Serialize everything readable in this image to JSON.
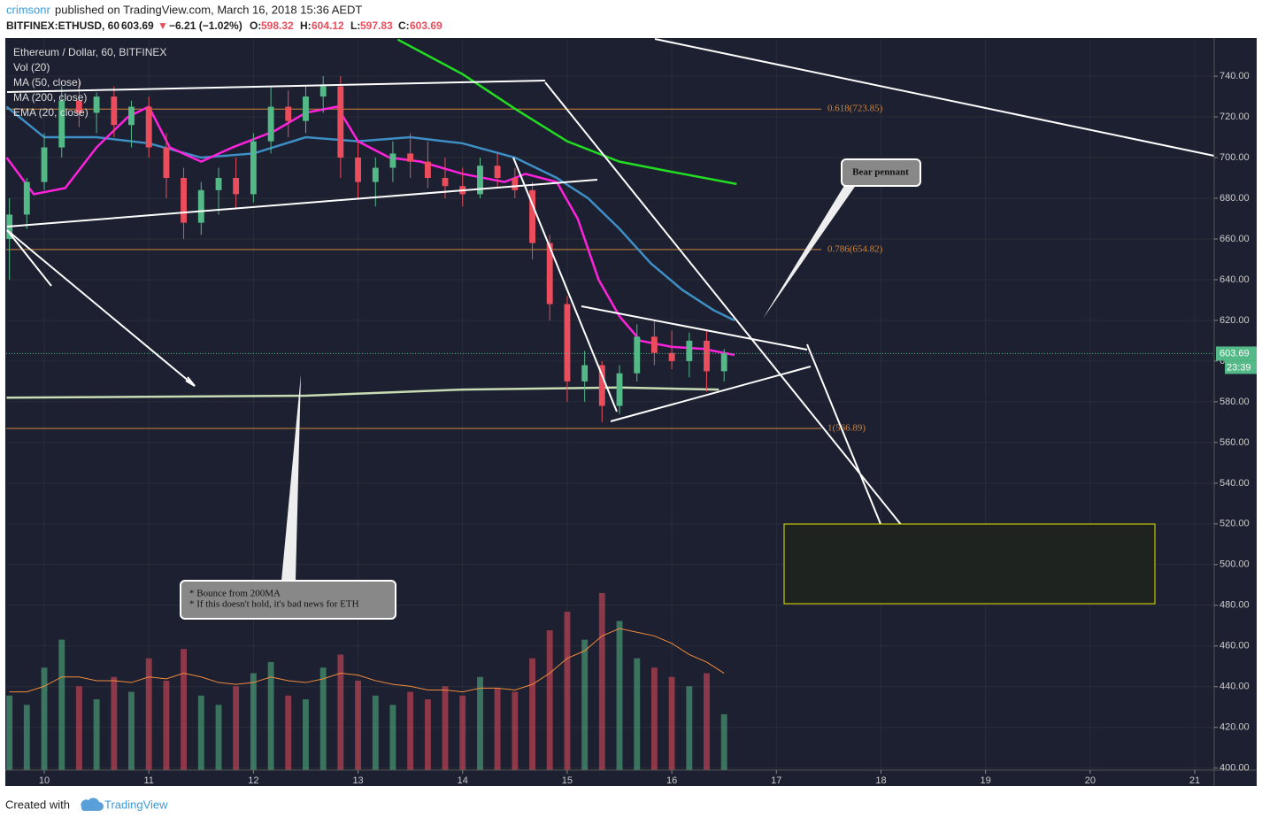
{
  "header": {
    "author": "crimsonr",
    "published": "published on TradingView.com, March 16, 2018 15:36 AEDT",
    "symbol": "BITFINEX:ETHUSD, 60",
    "arrow": "▼",
    "change": "−6.21 (−1.02%)",
    "o_label": "O:",
    "open": "598.32",
    "h_label": "H:",
    "high": "604.12",
    "l_label": "L:",
    "low": "597.83",
    "c_label": "C:"
  },
  "chart_data": {
    "type": "candlestick",
    "title": "Ethereum / Dollar, 60, BITFINEX",
    "x": [
      9.667,
      9.833,
      10.0,
      10.167,
      10.333,
      10.5,
      10.667,
      10.833,
      11.0,
      11.167,
      11.333,
      11.5,
      11.667,
      11.833,
      12.0,
      12.167,
      12.333,
      12.5,
      12.667,
      12.833,
      13.0,
      13.167,
      13.333,
      13.5,
      13.667,
      13.833,
      14.0,
      14.167,
      14.333,
      14.5,
      14.667,
      14.833,
      15.0,
      15.167,
      15.333,
      15.5,
      15.667,
      15.833,
      16.0,
      16.167,
      16.333,
      16.5
    ],
    "open": [
      660,
      672,
      688,
      705,
      728,
      722,
      730,
      716,
      725,
      705,
      690,
      668,
      684,
      690,
      682,
      708,
      725,
      718,
      730,
      735,
      700,
      688,
      695,
      702,
      698,
      690,
      686,
      682,
      696,
      690,
      684,
      658,
      628,
      590,
      598,
      578,
      594,
      612,
      604,
      600,
      610,
      595
    ],
    "high": [
      680,
      690,
      712,
      735,
      738,
      732,
      735,
      728,
      730,
      712,
      695,
      688,
      695,
      700,
      712,
      735,
      733,
      735,
      740,
      740,
      708,
      700,
      708,
      712,
      708,
      700,
      695,
      700,
      702,
      695,
      688,
      662,
      632,
      605,
      600,
      598,
      618,
      620,
      615,
      614,
      615,
      606
    ],
    "low": [
      640,
      665,
      684,
      700,
      715,
      712,
      710,
      705,
      700,
      680,
      660,
      662,
      672,
      675,
      678,
      702,
      710,
      712,
      722,
      690,
      680,
      676,
      688,
      690,
      685,
      680,
      676,
      680,
      685,
      680,
      650,
      620,
      580,
      580,
      570,
      574,
      590,
      598,
      596,
      592,
      585,
      590
    ],
    "close": [
      672,
      688,
      705,
      728,
      722,
      730,
      716,
      725,
      705,
      690,
      668,
      684,
      690,
      682,
      708,
      725,
      718,
      730,
      735,
      700,
      688,
      695,
      702,
      698,
      690,
      686,
      682,
      696,
      690,
      684,
      658,
      628,
      590,
      598,
      578,
      594,
      612,
      604,
      600,
      610,
      595,
      603.69
    ],
    "up_color": "#53b987",
    "down_color": "#eb4d5c",
    "volume": {
      "name": "Vol (20)",
      "values": [
        40,
        35,
        55,
        70,
        45,
        38,
        50,
        42,
        60,
        48,
        65,
        40,
        35,
        45,
        52,
        58,
        40,
        38,
        55,
        62,
        48,
        40,
        35,
        42,
        38,
        45,
        40,
        50,
        44,
        42,
        60,
        75,
        85,
        70,
        95,
        80,
        60,
        55,
        50,
        45,
        52,
        30
      ],
      "ma_values": [
        42,
        42,
        45,
        50,
        50,
        48,
        48,
        47,
        50,
        49,
        52,
        50,
        47,
        46,
        47,
        50,
        48,
        47,
        49,
        52,
        51,
        48,
        46,
        45,
        43,
        43,
        42,
        44,
        44,
        43,
        46,
        52,
        60,
        64,
        72,
        76,
        74,
        72,
        68,
        62,
        58,
        52
      ],
      "ma_color": "#f28b3d"
    },
    "indicators": [
      {
        "name": "MA (50, close)",
        "color": "#3d8fc6",
        "x": [
          9.64,
          10.0,
          10.5,
          11.0,
          11.5,
          12.0,
          12.5,
          13.0,
          13.5,
          14.0,
          14.5,
          14.9,
          15.2,
          15.5,
          15.8,
          16.1,
          16.4,
          16.6
        ],
        "values": [
          725,
          710,
          710,
          707,
          700,
          702,
          710,
          708,
          710,
          707,
          700,
          690,
          680,
          665,
          648,
          635,
          625,
          620
        ]
      },
      {
        "name": "MA (200, close)",
        "color": "#c8dcb4",
        "x": [
          9.64,
          12.5,
          14.0,
          15.5,
          16.45
        ],
        "values": [
          582,
          583,
          586,
          587,
          586
        ]
      },
      {
        "name": "EMA (20, close)",
        "color": "#ff22dd",
        "x": [
          9.64,
          9.9,
          10.2,
          10.5,
          10.8,
          11.0,
          11.2,
          11.5,
          11.8,
          12.2,
          12.5,
          12.8,
          13.0,
          13.3,
          13.6,
          14.0,
          14.4,
          14.6,
          14.9,
          15.1,
          15.3,
          15.5,
          15.7,
          16.0,
          16.3,
          16.6
        ],
        "values": [
          700,
          682,
          685,
          705,
          720,
          725,
          705,
          698,
          705,
          713,
          722,
          725,
          708,
          700,
          698,
          692,
          688,
          692,
          688,
          670,
          640,
          622,
          610,
          607,
          606,
          603
        ]
      }
    ],
    "extra_line": {
      "color": "#22dd22",
      "x": [
        13.38,
        14.0,
        14.5,
        15.0,
        15.5,
        16.0,
        16.62
      ],
      "values": [
        758,
        741,
        724,
        708,
        698,
        693,
        687
      ]
    },
    "fib": [
      {
        "value": 723.85,
        "label": "0.618(723.85)"
      },
      {
        "value": 654.82,
        "label": "0.786(654.82)"
      },
      {
        "value": 566.89,
        "label": "1(566.89)"
      }
    ],
    "countdown": "23:39",
    "xlim": [
      9.636,
      21.186
    ],
    "ylim": [
      399,
      758.3
    ],
    "xticks": [
      10,
      11,
      12,
      13,
      14,
      15,
      16,
      17,
      18,
      19,
      20,
      21
    ],
    "yticks": [
      {
        "value": 400,
        "label": "400.00"
      },
      {
        "value": 420,
        "label": "420.00"
      },
      {
        "value": 440,
        "label": "440.00"
      },
      {
        "value": 460,
        "label": "460.00"
      },
      {
        "value": 480,
        "label": "480.00"
      },
      {
        "value": 500,
        "label": "500.00"
      },
      {
        "value": 520,
        "label": "520.00"
      },
      {
        "value": 540,
        "label": "540.00"
      },
      {
        "value": 560,
        "label": "560.00"
      },
      {
        "value": 580,
        "label": "580.00"
      },
      {
        "value": 600,
        "label": "600.00"
      },
      {
        "value": 620,
        "label": "620.00"
      },
      {
        "value": 640,
        "label": "640.00"
      },
      {
        "value": 660,
        "label": "660.00"
      },
      {
        "value": 680,
        "label": "680.00"
      },
      {
        "value": 700,
        "label": "700.00"
      },
      {
        "value": 720,
        "label": "720.00"
      },
      {
        "value": 740,
        "label": "740.00"
      }
    ],
    "grid": true,
    "annotations": {
      "pennant": "Bear pennant",
      "note1": "* Bounce from 200MA",
      "note2": "* If this doesn't hold, it's bad news for ETH"
    }
  },
  "footer": {
    "created": "Created with",
    "brand": "TradingView"
  }
}
